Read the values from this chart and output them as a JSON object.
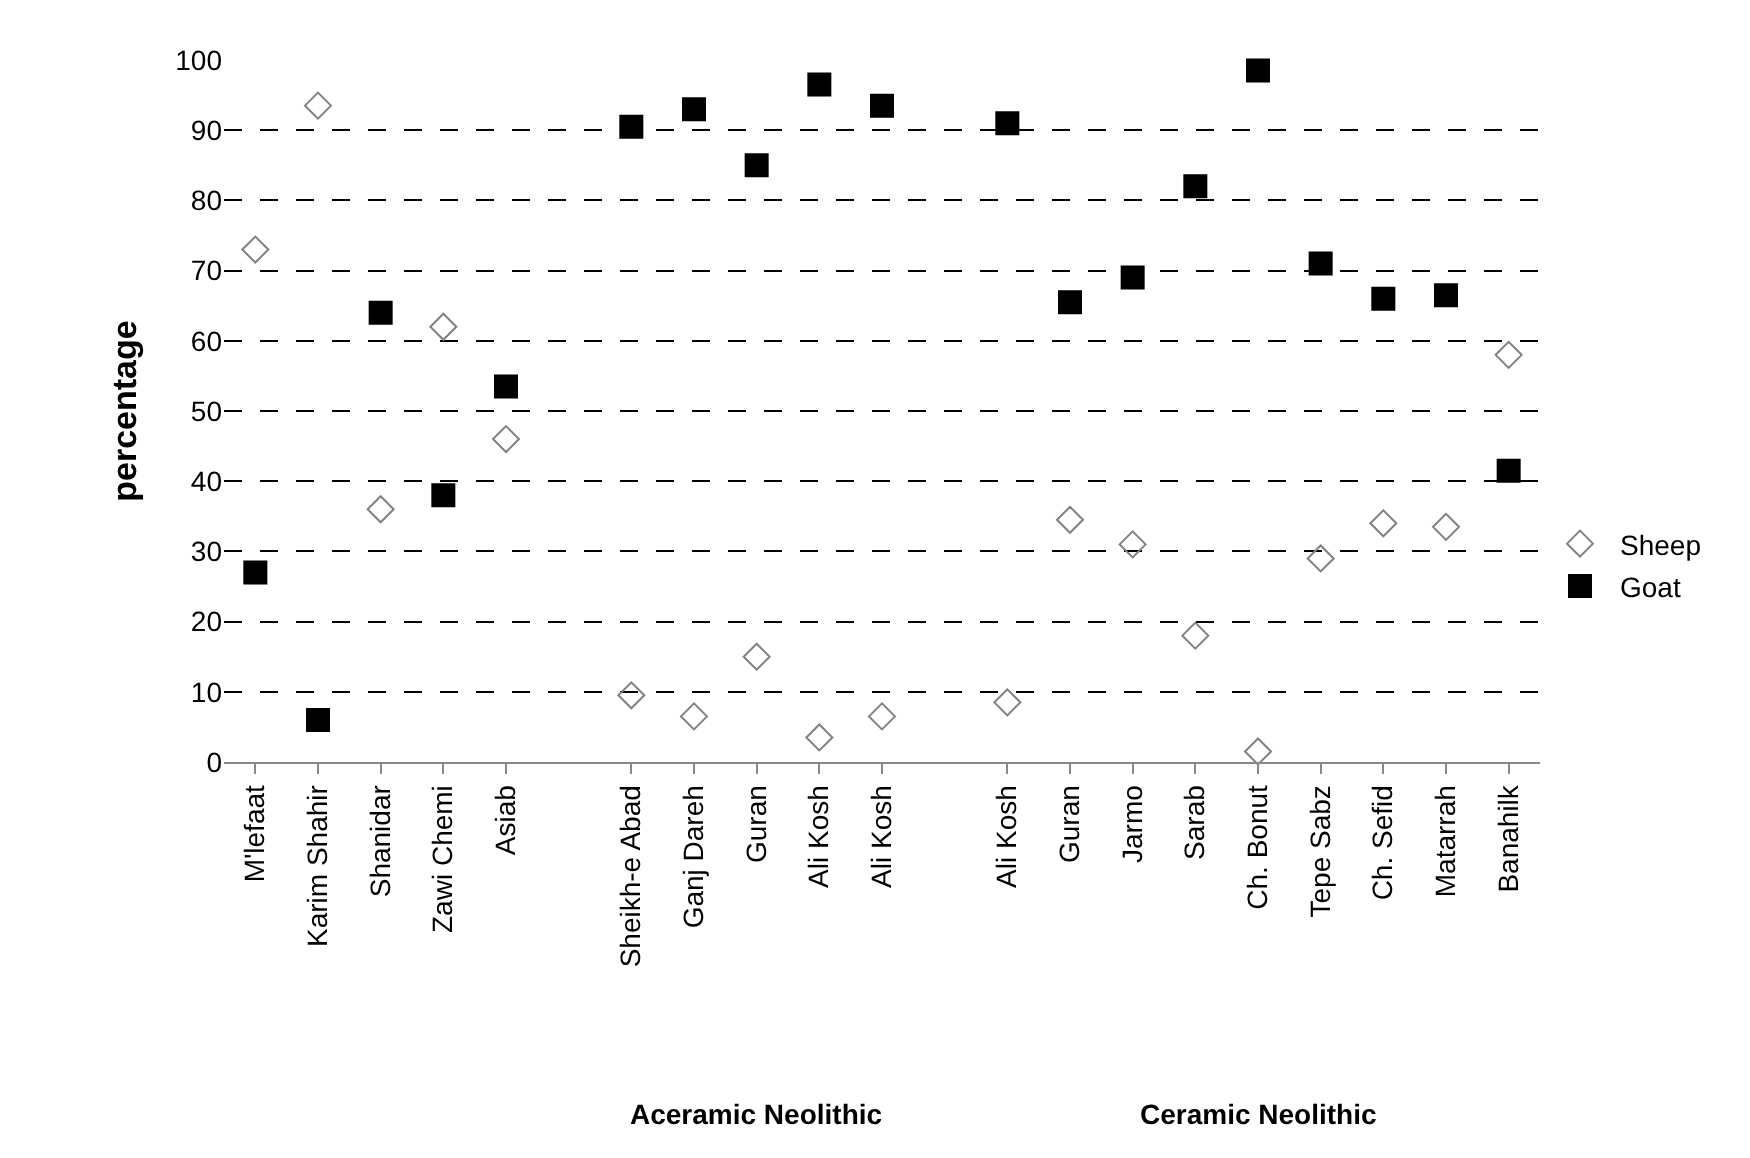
{
  "chart_data": {
    "type": "scatter",
    "ylabel": "percentage",
    "categories": [
      "M'lefaat",
      "Karim Shahir",
      "Shanidar",
      "Zawi Chemi",
      "Asiab",
      null,
      "Sheikh-e Abad",
      "Ganj Dareh",
      "Guran",
      "Ali Kosh",
      "Ali Kosh",
      null,
      "Ali Kosh",
      "Guran",
      "Jarmo",
      "Sarab",
      "Ch. Bonut",
      "Tepe Sabz",
      "Ch. Sefid",
      "Matarrah",
      "Banahilk"
    ],
    "series": [
      {
        "name": "Sheep",
        "color": "#808080",
        "marker": "diamond",
        "values": [
          73,
          93.5,
          36,
          62,
          46,
          null,
          9.5,
          6.5,
          15,
          3.5,
          6.5,
          null,
          8.5,
          34.5,
          31,
          18,
          1.5,
          29,
          34,
          33.5,
          58
        ]
      },
      {
        "name": "Goat",
        "color": "#000000",
        "marker": "square",
        "values": [
          27,
          6,
          64,
          38,
          53.5,
          null,
          90.5,
          93,
          85,
          96.5,
          93.5,
          null,
          91,
          65.5,
          69,
          82,
          98.5,
          71,
          66,
          66.5,
          41.5
        ]
      }
    ],
    "ylim": [
      0,
      100
    ],
    "yticks": [
      0,
      10,
      20,
      30,
      40,
      50,
      60,
      70,
      80,
      90,
      100
    ],
    "grid": "y",
    "legend": "right",
    "annotations": [
      "Aceramic Neolithic",
      "Ceramic Neolithic"
    ]
  }
}
